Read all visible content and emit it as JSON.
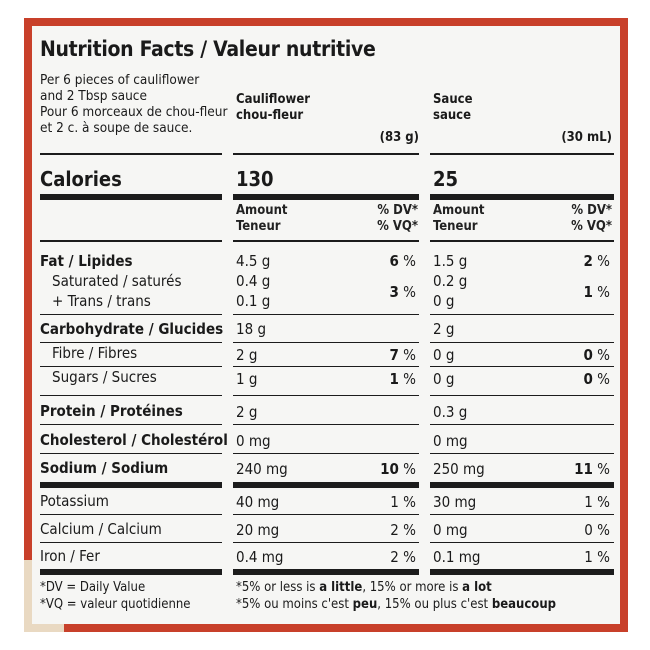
{
  "title": "Nutrition Facts / Valeur nutritive",
  "serving": [
    "Per 6 pieces of cauliflower",
    "and 2 Tbsp sauce",
    "Pour 6 morceaux de chou-fleur",
    "et 2 c. à soupe de sauce."
  ],
  "columns": [
    {
      "name": "Cauliflower",
      "name_fr": "chou-fleur",
      "size": "(83 g)",
      "calories": "130"
    },
    {
      "name": "Sauce",
      "name_fr": "sauce",
      "size": "(30 mL)",
      "calories": "25"
    }
  ],
  "calories_label": "Calories",
  "amount_label": "Amount",
  "amount_label_fr": "Teneur",
  "dv_label": "% DV*",
  "vq_label": "% VQ*",
  "rows": [
    {
      "label": "Fat / Lipides",
      "a": "4.5 g",
      "a_pct": "6",
      "b": "1.5 g",
      "b_pct": "2"
    },
    {
      "label": "Saturated / saturés",
      "a": "0.4 g",
      "b": "0.2 g"
    },
    {
      "label": "+ Trans / trans",
      "a": "0.1 g",
      "b": "0 g"
    },
    {
      "label": "Carbohydrate / Glucides",
      "a": "18 g",
      "b": "2 g"
    },
    {
      "label": "Fibre / Fibres",
      "a": "2 g",
      "a_pct": "7",
      "b": "0 g",
      "b_pct": "0"
    },
    {
      "label": "Sugars / Sucres",
      "a": "1 g",
      "a_pct": "1",
      "b": "0 g",
      "b_pct": "0"
    },
    {
      "label": "Protein / Protéines",
      "a": "2 g",
      "b": "0.3 g"
    },
    {
      "label": "Cholesterol / Cholestérol",
      "a": "0 mg",
      "b": "0 mg"
    },
    {
      "label": "Sodium / Sodium",
      "a": "240 mg",
      "a_pct": "10",
      "b": "250 mg",
      "b_pct": "11"
    },
    {
      "label": "Potassium",
      "a": "40 mg",
      "a_pct": "1",
      "b": "30 mg",
      "b_pct": "1"
    },
    {
      "label": "Calcium / Calcium",
      "a": "20 mg",
      "a_pct": "2",
      "b": "0 mg",
      "b_pct": "0"
    },
    {
      "label": "Iron / Fer",
      "a": "0.4 mg",
      "a_pct": "2",
      "b": "0.1 mg",
      "b_pct": "1"
    }
  ],
  "sat_trans_pct": {
    "a": "3",
    "b": "1"
  },
  "pct_sign": "%",
  "footnotes": {
    "dv": "*DV = Daily Value",
    "vq": "*VQ = valeur quotidienne",
    "en_1": "*5% or less is ",
    "en_2": "a little",
    "en_3": ", 15% or more is ",
    "en_4": "a lot",
    "fr_1": "*5% ou moins c'est ",
    "fr_2": "peu",
    "fr_3": ", 15% ou plus c'est ",
    "fr_4": "beaucoup"
  },
  "colors": {
    "border": "#c8402a",
    "panel": "#f6f6f4",
    "ink": "#1a1a1a"
  }
}
